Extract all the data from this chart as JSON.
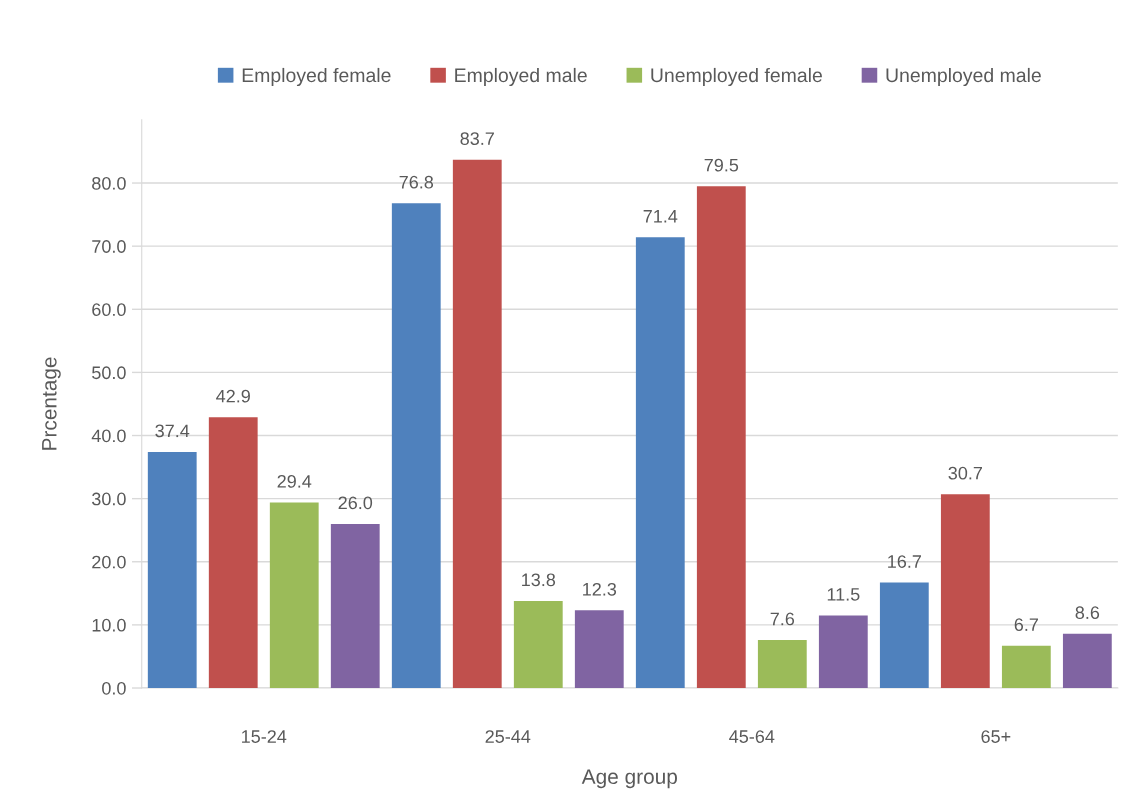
{
  "chart_data": {
    "type": "bar",
    "xlabel": "Age group",
    "ylabel": "Prcentage",
    "categories": [
      "15-24",
      "25-44",
      "45-64",
      "65+"
    ],
    "series": [
      {
        "name": "Employed female",
        "color": "#4f81bd",
        "values": [
          37.4,
          76.8,
          71.4,
          16.7
        ],
        "value_labels": [
          "37.4",
          "76.8",
          "71.4",
          "16.7"
        ]
      },
      {
        "name": "Employed male",
        "color": "#c0504d",
        "values": [
          42.9,
          83.7,
          79.5,
          30.7
        ],
        "value_labels": [
          "42.9",
          "83.7",
          "79.5",
          "30.7"
        ]
      },
      {
        "name": "Unemployed female",
        "color": "#9bbb59",
        "values": [
          29.4,
          13.8,
          7.6,
          6.7
        ],
        "value_labels": [
          "29.4",
          "13.8",
          "7.6",
          "6.7"
        ]
      },
      {
        "name": "Unemployed male",
        "color": "#8064a2",
        "values": [
          26.0,
          12.3,
          11.5,
          8.6
        ],
        "value_labels": [
          "26.0",
          "12.3",
          "11.5",
          "8.6"
        ]
      }
    ],
    "ylim": [
      0,
      90
    ],
    "yticks": [
      {
        "value": 0,
        "label": "0.0"
      },
      {
        "value": 10,
        "label": "10.0"
      },
      {
        "value": 20,
        "label": "20.0"
      },
      {
        "value": 30,
        "label": "30.0"
      },
      {
        "value": 40,
        "label": "40.0"
      },
      {
        "value": 50,
        "label": "50.0"
      },
      {
        "value": 60,
        "label": "60.0"
      },
      {
        "value": 70,
        "label": "70.0"
      },
      {
        "value": 80,
        "label": "80.0"
      }
    ],
    "grid": "y",
    "legend": "top"
  }
}
